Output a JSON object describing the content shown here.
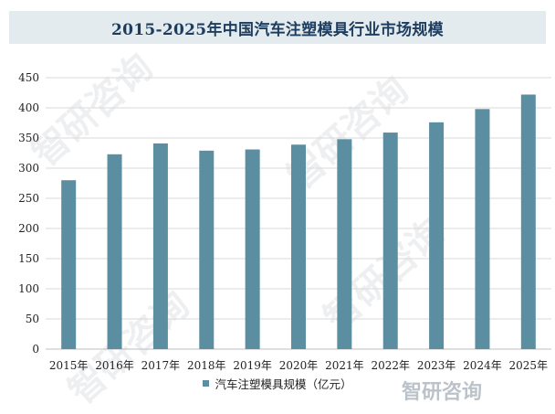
{
  "title": "2015-2025年中国汽车注塑模具行业市场规模",
  "watermark": "智研咨询",
  "chart_data": {
    "type": "bar",
    "title": "2015-2025年中国汽车注塑模具行业市场规模",
    "categories": [
      "2015年",
      "2016年",
      "2017年",
      "2018年",
      "2019年",
      "2020年",
      "2021年",
      "2022年",
      "2023年",
      "2024年",
      "2025年"
    ],
    "series": [
      {
        "name": "汽车注塑模具规模（亿元）",
        "values": [
          280,
          323,
          341,
          329,
          331,
          339,
          348,
          359,
          376,
          398,
          422
        ]
      }
    ],
    "ylim": [
      0,
      450
    ],
    "yticks": [
      0,
      50,
      100,
      150,
      200,
      250,
      300,
      350,
      400,
      450
    ],
    "xlabel": "",
    "ylabel": "",
    "grid": "horizontal",
    "legend": "bottom-center",
    "bar_color": "#5b8ea0",
    "grid_color": "#d9d9d9"
  }
}
